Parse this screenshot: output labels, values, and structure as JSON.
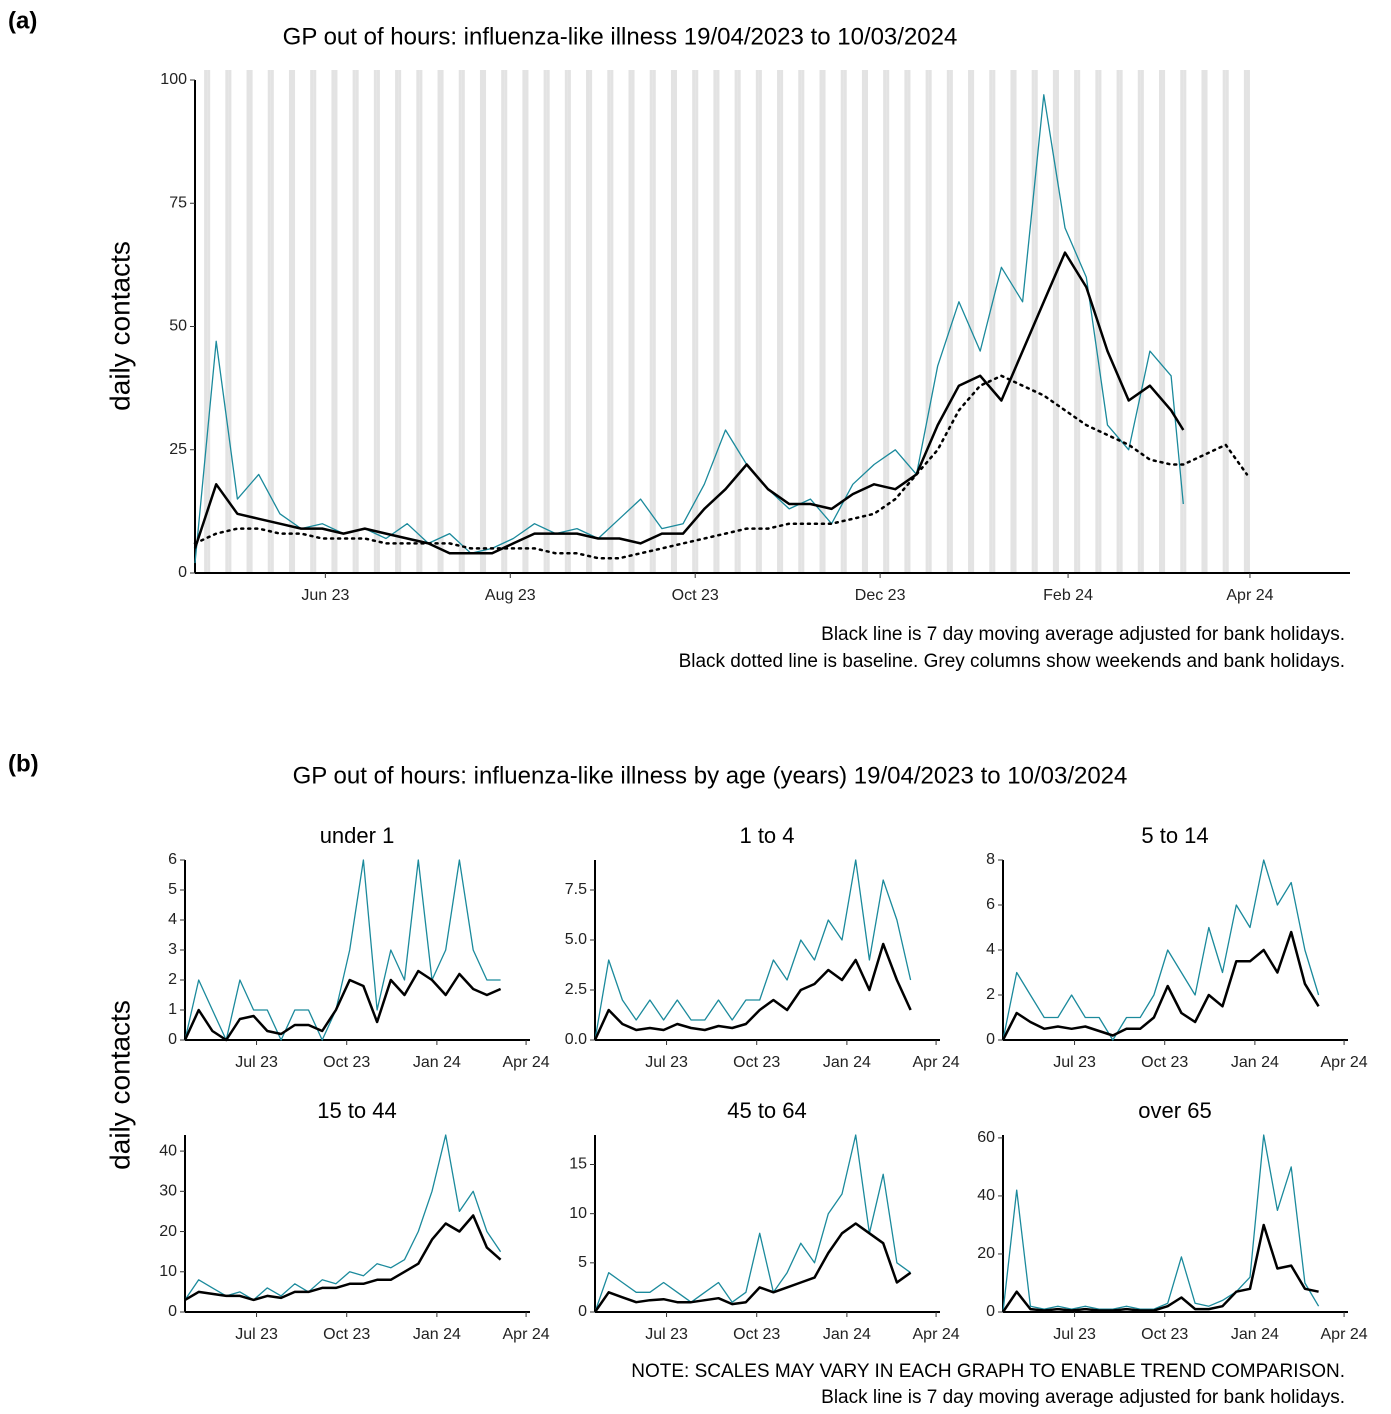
{
  "chart_data": [
    {
      "type": "line",
      "panel_label": "(a)",
      "title": "GP out of hours: influenza-like illness 19/04/2023 to 10/03/2024",
      "y_label": "daily contacts",
      "notes": [
        "Black line is 7 day moving average adjusted for bank holidays.",
        "Black dotted line is baseline. Grey columns show weekends and bank holidays."
      ],
      "x": [
        "2023-04-19",
        "2023-04-26",
        "2023-05-03",
        "2023-05-10",
        "2023-05-17",
        "2023-05-24",
        "2023-05-31",
        "2023-06-07",
        "2023-06-14",
        "2023-06-21",
        "2023-06-28",
        "2023-07-05",
        "2023-07-12",
        "2023-07-19",
        "2023-07-26",
        "2023-08-02",
        "2023-08-09",
        "2023-08-16",
        "2023-08-23",
        "2023-08-30",
        "2023-09-06",
        "2023-09-13",
        "2023-09-20",
        "2023-09-27",
        "2023-10-04",
        "2023-10-11",
        "2023-10-18",
        "2023-10-25",
        "2023-11-01",
        "2023-11-08",
        "2023-11-15",
        "2023-11-22",
        "2023-11-29",
        "2023-12-06",
        "2023-12-13",
        "2023-12-20",
        "2023-12-27",
        "2024-01-03",
        "2024-01-10",
        "2024-01-17",
        "2024-01-24",
        "2024-01-31",
        "2024-02-07",
        "2024-02-14",
        "2024-02-21",
        "2024-02-28",
        "2024-03-06",
        "2024-03-10",
        "2024-03-17",
        "2024-03-24",
        "2024-03-31"
      ],
      "xlim": [
        "2023-04-19",
        "2024-05-04"
      ],
      "xticks": [
        {
          "value": "2023-06-01",
          "label": "Jun 23"
        },
        {
          "value": "2023-08-01",
          "label": "Aug 23"
        },
        {
          "value": "2023-10-01",
          "label": "Oct 23"
        },
        {
          "value": "2023-12-01",
          "label": "Dec 23"
        },
        {
          "value": "2024-02-01",
          "label": "Feb 24"
        },
        {
          "value": "2024-04-01",
          "label": "Apr 24"
        }
      ],
      "ylim": [
        0,
        100
      ],
      "yticks": [
        0,
        25,
        50,
        75,
        100
      ],
      "weekend_shading": true,
      "series": [
        {
          "color": "#1b8a9c",
          "style": "solid",
          "values": [
            2,
            47,
            15,
            20,
            12,
            9,
            10,
            8,
            9,
            7,
            10,
            6,
            8,
            4,
            5,
            7,
            10,
            8,
            9,
            7,
            11,
            15,
            9,
            10,
            18,
            29,
            22,
            17,
            13,
            15,
            10,
            18,
            22,
            25,
            20,
            42,
            55,
            45,
            62,
            55,
            97,
            70,
            60,
            30,
            25,
            45,
            40,
            14,
            null,
            null,
            null
          ]
        },
        {
          "color": "#000000",
          "style": "solid",
          "values": [
            5,
            18,
            12,
            11,
            10,
            9,
            9,
            8,
            9,
            8,
            7,
            6,
            4,
            4,
            4,
            6,
            8,
            8,
            8,
            7,
            7,
            6,
            8,
            8,
            13,
            17,
            22,
            17,
            14,
            14,
            13,
            16,
            18,
            17,
            20,
            30,
            38,
            40,
            35,
            45,
            55,
            65,
            58,
            45,
            35,
            38,
            33,
            29,
            null,
            null,
            null
          ]
        },
        {
          "color": "#000000",
          "style": "dotted",
          "values": [
            6,
            8,
            9,
            9,
            8,
            8,
            7,
            7,
            7,
            6,
            6,
            6,
            6,
            5,
            5,
            5,
            5,
            4,
            4,
            3,
            3,
            4,
            5,
            6,
            7,
            8,
            9,
            9,
            10,
            10,
            10,
            11,
            12,
            15,
            20,
            25,
            33,
            38,
            40,
            38,
            36,
            33,
            30,
            28,
            26,
            23,
            22,
            22,
            24,
            26,
            20
          ]
        }
      ]
    },
    {
      "type": "facet-line",
      "panel_label": "(b)",
      "title": "GP out of hours: influenza-like illness by age (years) 19/04/2023 to 10/03/2024",
      "y_label": "daily contacts",
      "notes": [
        "NOTE: SCALES MAY VARY IN EACH GRAPH TO ENABLE TREND COMPARISON.",
        "Black line is 7 day moving average adjusted for bank holidays."
      ],
      "x": [
        "2023-04-19",
        "2023-05-03",
        "2023-05-17",
        "2023-05-31",
        "2023-06-14",
        "2023-06-28",
        "2023-07-12",
        "2023-07-26",
        "2023-08-09",
        "2023-08-23",
        "2023-09-06",
        "2023-09-20",
        "2023-10-04",
        "2023-10-18",
        "2023-11-01",
        "2023-11-15",
        "2023-11-29",
        "2023-12-13",
        "2023-12-27",
        "2024-01-10",
        "2024-01-24",
        "2024-02-07",
        "2024-02-21",
        "2024-03-06"
      ],
      "xlim": [
        "2023-04-19",
        "2024-04-05"
      ],
      "xticks": [
        {
          "value": "2023-07-01",
          "label": "Jul 23"
        },
        {
          "value": "2023-10-01",
          "label": "Oct 23"
        },
        {
          "value": "2024-01-01",
          "label": "Jan 24"
        },
        {
          "value": "2024-04-01",
          "label": "Apr 24"
        }
      ],
      "panels": [
        {
          "title": "under 1",
          "ylim": [
            0,
            6
          ],
          "yticks": [
            0,
            1,
            2,
            3,
            4,
            5,
            6
          ],
          "series": [
            {
              "color": "#1b8a9c",
              "values": [
                0,
                2,
                1,
                0,
                2,
                1,
                1,
                0,
                1,
                1,
                0,
                1,
                3,
                6,
                1,
                3,
                2,
                6,
                2,
                3,
                6,
                3,
                2,
                2
              ]
            },
            {
              "color": "#000000",
              "values": [
                0,
                1,
                0.3,
                0,
                0.7,
                0.8,
                0.3,
                0.2,
                0.5,
                0.5,
                0.3,
                1,
                2,
                1.8,
                0.6,
                2,
                1.5,
                2.3,
                2,
                1.5,
                2.2,
                1.7,
                1.5,
                1.7
              ]
            }
          ]
        },
        {
          "title": "1 to 4",
          "ylim": [
            0,
            9
          ],
          "yticks": [
            {
              "value": 0,
              "label": "0.0"
            },
            2.5,
            {
              "value": 5,
              "label": "5.0"
            },
            7.5
          ],
          "series": [
            {
              "color": "#1b8a9c",
              "values": [
                0,
                4,
                2,
                1,
                2,
                1,
                2,
                1,
                1,
                2,
                1,
                2,
                2,
                4,
                3,
                5,
                4,
                6,
                5,
                9,
                4,
                8,
                6,
                3
              ]
            },
            {
              "color": "#000000",
              "values": [
                0,
                1.5,
                0.8,
                0.5,
                0.6,
                0.5,
                0.8,
                0.6,
                0.5,
                0.7,
                0.6,
                0.8,
                1.5,
                2,
                1.5,
                2.5,
                2.8,
                3.5,
                3,
                4,
                2.5,
                4.8,
                3,
                1.5
              ]
            }
          ]
        },
        {
          "title": "5 to 14",
          "ylim": [
            0,
            8
          ],
          "yticks": [
            0,
            2,
            4,
            6,
            8
          ],
          "series": [
            {
              "color": "#1b8a9c",
              "values": [
                0,
                3,
                2,
                1,
                1,
                2,
                1,
                1,
                0,
                1,
                1,
                2,
                4,
                3,
                2,
                5,
                3,
                6,
                5,
                8,
                6,
                7,
                4,
                2
              ]
            },
            {
              "color": "#000000",
              "values": [
                0,
                1.2,
                0.8,
                0.5,
                0.6,
                0.5,
                0.6,
                0.4,
                0.2,
                0.5,
                0.5,
                1,
                2.4,
                1.2,
                0.8,
                2,
                1.5,
                3.5,
                3.5,
                4,
                3,
                4.8,
                2.5,
                1.5
              ]
            }
          ]
        },
        {
          "title": "15 to 44",
          "ylim": [
            0,
            44
          ],
          "yticks": [
            0,
            10,
            20,
            30,
            40
          ],
          "series": [
            {
              "color": "#1b8a9c",
              "values": [
                3,
                8,
                6,
                4,
                5,
                3,
                6,
                4,
                7,
                5,
                8,
                7,
                10,
                9,
                12,
                11,
                13,
                20,
                30,
                44,
                25,
                30,
                20,
                15
              ]
            },
            {
              "color": "#000000",
              "values": [
                3,
                5,
                4.5,
                4,
                4,
                3,
                4,
                3.5,
                5,
                5,
                6,
                6,
                7,
                7,
                8,
                8,
                10,
                12,
                18,
                22,
                20,
                24,
                16,
                13
              ]
            }
          ]
        },
        {
          "title": "45 to 64",
          "ylim": [
            0,
            18
          ],
          "yticks": [
            0,
            5,
            10,
            15
          ],
          "series": [
            {
              "color": "#1b8a9c",
              "values": [
                0,
                4,
                3,
                2,
                2,
                3,
                2,
                1,
                2,
                3,
                1,
                2,
                8,
                2,
                4,
                7,
                5,
                10,
                12,
                18,
                8,
                14,
                5,
                4
              ]
            },
            {
              "color": "#000000",
              "values": [
                0,
                2,
                1.5,
                1,
                1.2,
                1.3,
                1,
                1,
                1.2,
                1.4,
                0.8,
                1,
                2.5,
                2,
                2.5,
                3,
                3.5,
                6,
                8,
                9,
                8,
                7,
                3,
                4
              ]
            }
          ]
        },
        {
          "title": "over 65",
          "ylim": [
            0,
            61
          ],
          "yticks": [
            0,
            20,
            40,
            60
          ],
          "series": [
            {
              "color": "#1b8a9c",
              "values": [
                0,
                42,
                2,
                1,
                2,
                1,
                2,
                1,
                1,
                2,
                1,
                1,
                3,
                19,
                3,
                2,
                4,
                7,
                12,
                61,
                35,
                50,
                10,
                2
              ]
            },
            {
              "color": "#000000",
              "values": [
                0,
                7,
                1,
                0.5,
                1,
                0.5,
                1,
                0.5,
                0.5,
                1,
                0.5,
                0.5,
                2,
                5,
                1,
                1,
                2,
                7,
                8,
                30,
                15,
                16,
                8,
                7
              ]
            }
          ]
        }
      ]
    }
  ]
}
